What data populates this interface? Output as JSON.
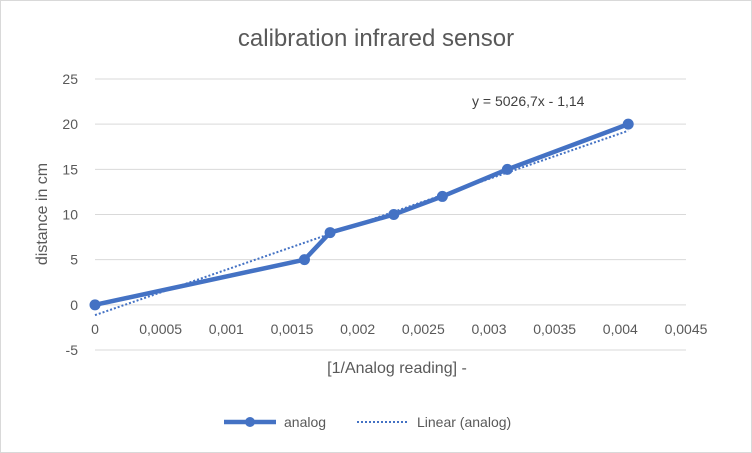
{
  "chart_data": {
    "type": "line",
    "title": "calibration infrared sensor",
    "xlabel": "[1/Analog reading] -",
    "ylabel": "distance in cm",
    "xlim": [
      0,
      0.0045
    ],
    "ylim": [
      -5,
      25
    ],
    "x_ticks": [
      0,
      0.0005,
      0.001,
      0.0015,
      0.002,
      0.0025,
      0.003,
      0.0035,
      0.004,
      0.0045
    ],
    "x_tick_labels": [
      "0",
      "0,0005",
      "0,001",
      "0,0015",
      "0,002",
      "0,0025",
      "0,003",
      "0,0035",
      "0,004",
      "0,0045"
    ],
    "y_ticks": [
      -5,
      0,
      5,
      10,
      15,
      20,
      25
    ],
    "y_tick_labels": [
      "-5",
      "0",
      "5",
      "10",
      "15",
      "20",
      "25"
    ],
    "grid": "horizontal",
    "legend_position": "bottom",
    "series": [
      {
        "name": "analog",
        "color": "#4472C4",
        "points": [
          [
            0,
            0
          ],
          [
            0.001595,
            5
          ],
          [
            0.00179,
            8
          ],
          [
            0.002275,
            10
          ],
          [
            0.002645,
            12
          ],
          [
            0.00314,
            15
          ],
          [
            0.00406,
            20
          ]
        ]
      }
    ],
    "trendline": {
      "name": "Linear (analog)",
      "type": "linear",
      "slope": 5026.7,
      "intercept": -1.14,
      "x_range": [
        0,
        0.00406
      ],
      "color": "#4472C4",
      "equation_label": "y = 5026,7x - 1,14"
    }
  }
}
